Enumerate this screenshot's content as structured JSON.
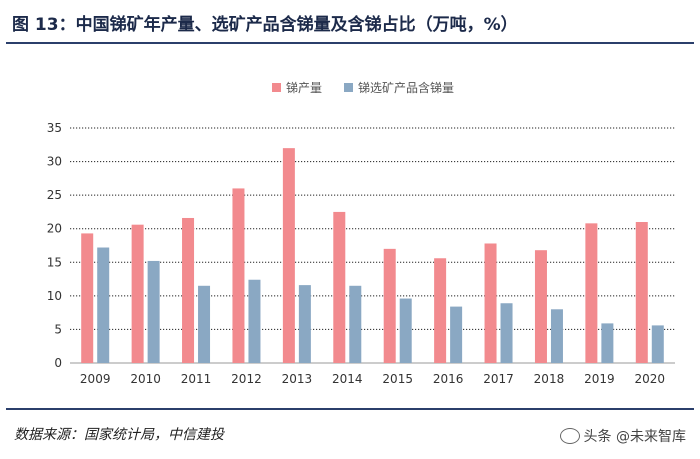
{
  "title": "图 13：中国锑矿年产量、选矿产品含锑量及含锑占比（万吨，%）",
  "source": "数据来源：国家统计局，中信建投",
  "watermark": "头条 @未来智库",
  "colors": {
    "series1": "#f28a8e",
    "series2": "#8aa8c3",
    "grid": "#222222"
  },
  "chart_data": {
    "type": "bar",
    "categories": [
      "2009",
      "2010",
      "2011",
      "2012",
      "2013",
      "2014",
      "2015",
      "2016",
      "2017",
      "2018",
      "2019",
      "2020"
    ],
    "series": [
      {
        "name": "锑产量",
        "values": [
          19.3,
          20.6,
          21.6,
          26.0,
          32.0,
          22.5,
          17.0,
          15.6,
          17.8,
          16.8,
          20.8,
          21.0
        ]
      },
      {
        "name": "锑选矿产品含锑量",
        "values": [
          17.2,
          15.2,
          11.5,
          12.4,
          11.6,
          11.5,
          9.6,
          8.4,
          8.9,
          8.0,
          5.9,
          5.6
        ]
      }
    ],
    "yticks": [
      0,
      5,
      10,
      15,
      20,
      25,
      30,
      35
    ],
    "ylim": [
      0,
      35
    ],
    "legend_position": "top-left",
    "title": "",
    "xlabel": "",
    "ylabel": ""
  }
}
